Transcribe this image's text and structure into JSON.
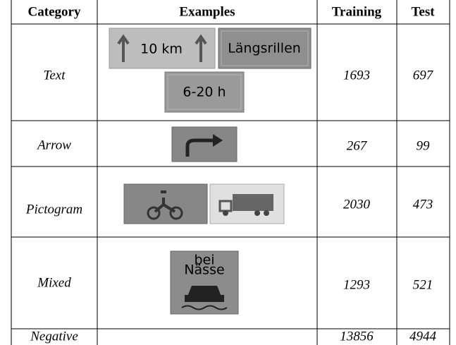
{
  "table": {
    "header": [
      "Category",
      "Examples",
      "Training",
      "Test"
    ],
    "rows": [
      {
        "category": "Text",
        "examples": [
          "10 km",
          "Längsrillen",
          "6-20 h"
        ],
        "training": 1693,
        "test": 697
      },
      {
        "category": "Arrow",
        "training": 267,
        "test": 99
      },
      {
        "category": "Pictogram",
        "training": 2030,
        "test": 473
      },
      {
        "category": "Mixed",
        "examples": [
          "bei",
          "Nässe"
        ],
        "training": 1293,
        "test": 521
      },
      {
        "category": "Negative",
        "training": 13856,
        "test": 4944
      }
    ]
  }
}
